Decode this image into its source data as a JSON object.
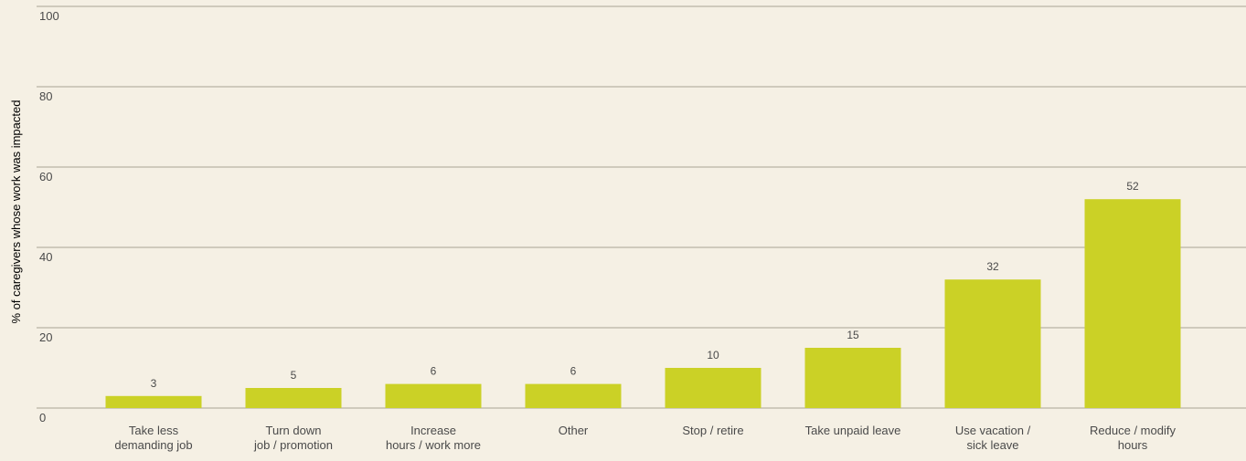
{
  "colors": {
    "background": "#f5f0e4",
    "bar": "#cbd126",
    "gridline": "#a9a595",
    "text": "#4a4a4a"
  },
  "chart_data": {
    "type": "bar",
    "title": "",
    "xlabel": "",
    "ylabel": "% of caregivers whose work was impacted",
    "ylim": [
      0,
      100
    ],
    "yticks": [
      0,
      20,
      40,
      60,
      80,
      100
    ],
    "grid": true,
    "categories": [
      [
        "Take less",
        "demanding job"
      ],
      [
        "Turn down",
        "job / promotion"
      ],
      [
        "Increase",
        "hours / work more"
      ],
      [
        "Other"
      ],
      [
        "Stop / retire"
      ],
      [
        "Take unpaid leave"
      ],
      [
        "Use vacation /",
        "sick leave"
      ],
      [
        "Reduce / modify",
        "hours"
      ]
    ],
    "values": [
      3,
      5,
      6,
      6,
      10,
      15,
      32,
      52
    ],
    "data_labels": [
      "3",
      "5",
      "6",
      "6",
      "10",
      "15",
      "32",
      "52"
    ]
  }
}
